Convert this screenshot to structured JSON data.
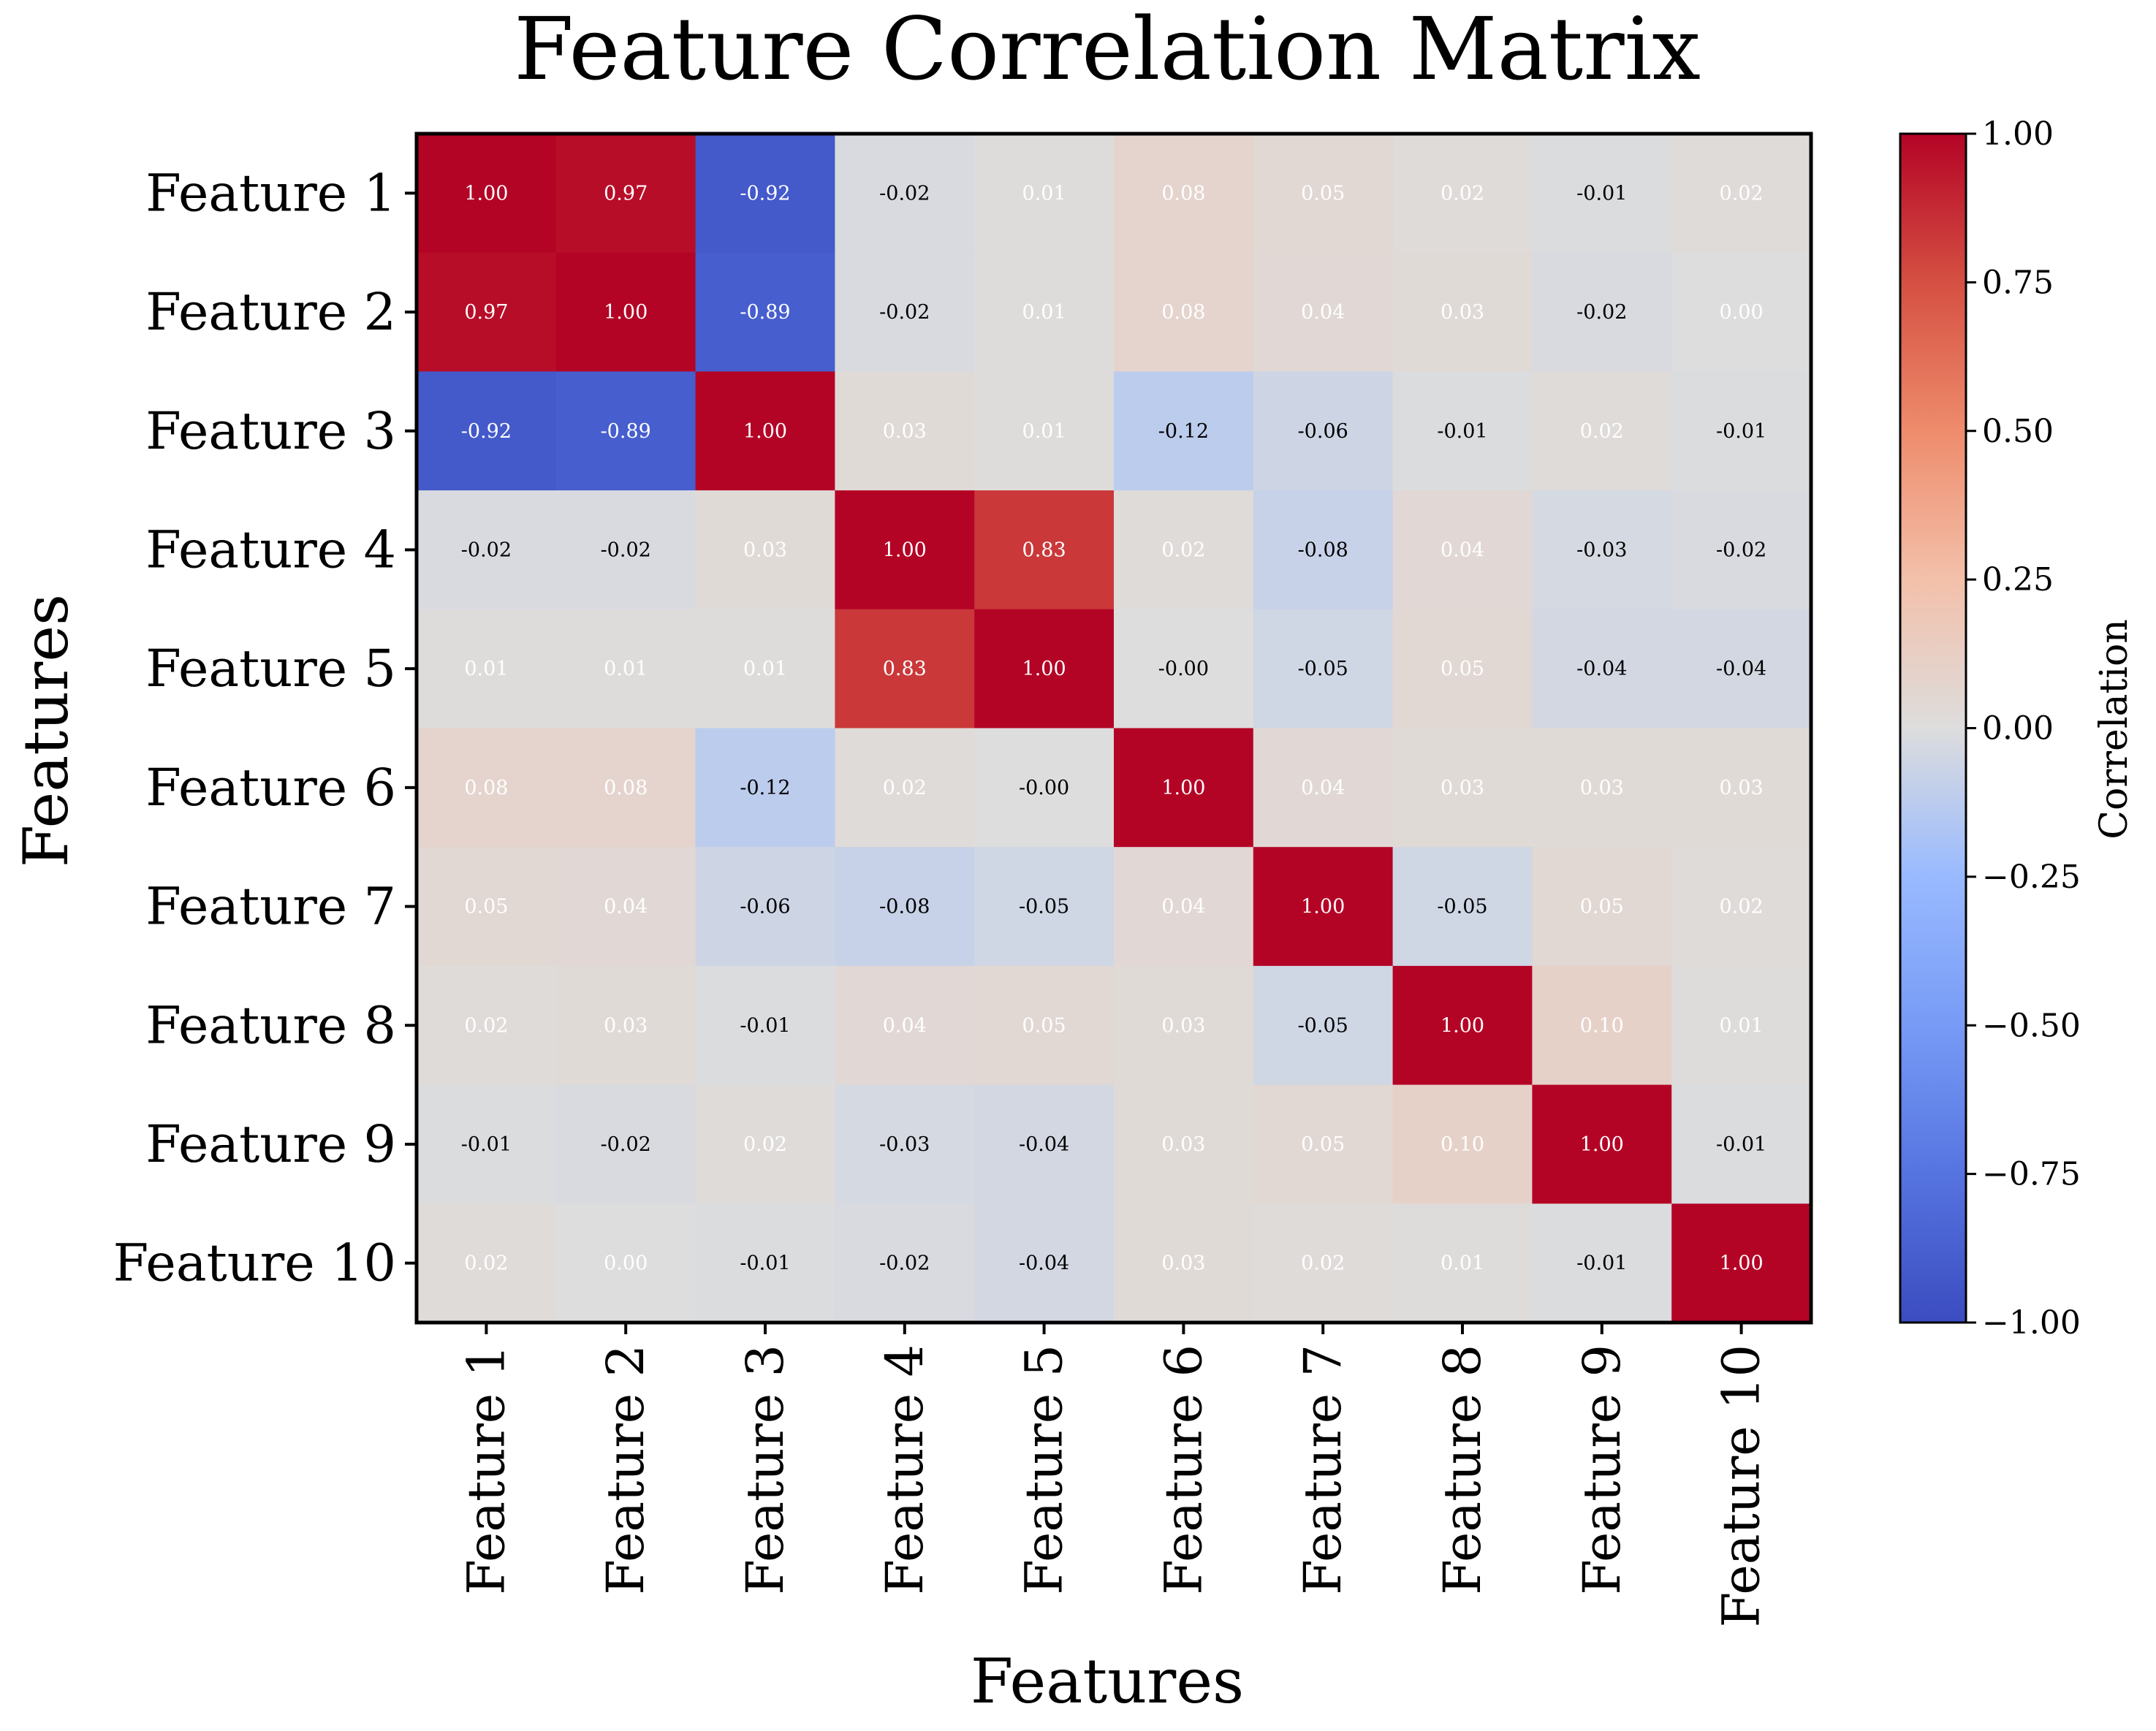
{
  "chart_data": {
    "type": "heatmap",
    "title": "Feature Correlation Matrix",
    "xlabel": "Features",
    "ylabel": "Features",
    "x_categories": [
      "Feature 1",
      "Feature 2",
      "Feature 3",
      "Feature 4",
      "Feature 5",
      "Feature 6",
      "Feature 7",
      "Feature 8",
      "Feature 9",
      "Feature 10"
    ],
    "y_categories": [
      "Feature 1",
      "Feature 2",
      "Feature 3",
      "Feature 4",
      "Feature 5",
      "Feature 6",
      "Feature 7",
      "Feature 8",
      "Feature 9",
      "Feature 10"
    ],
    "values": [
      [
        1.0,
        0.97,
        -0.92,
        -0.02,
        0.01,
        0.08,
        0.05,
        0.02,
        -0.01,
        0.02
      ],
      [
        0.97,
        1.0,
        -0.89,
        -0.02,
        0.01,
        0.08,
        0.04,
        0.03,
        -0.02,
        0.0
      ],
      [
        -0.92,
        -0.89,
        1.0,
        0.03,
        0.01,
        -0.12,
        -0.06,
        -0.01,
        0.02,
        -0.01
      ],
      [
        -0.02,
        -0.02,
        0.03,
        1.0,
        0.83,
        0.02,
        -0.08,
        0.04,
        -0.03,
        -0.02
      ],
      [
        0.01,
        0.01,
        0.01,
        0.83,
        1.0,
        -0.0,
        -0.05,
        0.05,
        -0.04,
        -0.04
      ],
      [
        0.08,
        0.08,
        -0.12,
        0.02,
        -0.0,
        1.0,
        0.04,
        0.03,
        0.03,
        0.03
      ],
      [
        0.05,
        0.04,
        -0.06,
        -0.08,
        -0.05,
        0.04,
        1.0,
        -0.05,
        0.05,
        0.02
      ],
      [
        0.02,
        0.03,
        -0.01,
        0.04,
        0.05,
        0.03,
        -0.05,
        1.0,
        0.1,
        0.01
      ],
      [
        -0.01,
        -0.02,
        0.02,
        -0.03,
        -0.04,
        0.03,
        0.05,
        0.1,
        1.0,
        -0.01
      ],
      [
        0.02,
        0.0,
        -0.01,
        -0.02,
        -0.04,
        0.03,
        0.02,
        0.01,
        -0.01,
        1.0
      ]
    ],
    "value_labels": [
      [
        "1.00",
        "0.97",
        "-0.92",
        "-0.02",
        "0.01",
        "0.08",
        "0.05",
        "0.02",
        "-0.01",
        "0.02"
      ],
      [
        "0.97",
        "1.00",
        "-0.89",
        "-0.02",
        "0.01",
        "0.08",
        "0.04",
        "0.03",
        "-0.02",
        "0.00"
      ],
      [
        "-0.92",
        "-0.89",
        "1.00",
        "0.03",
        "0.01",
        "-0.12",
        "-0.06",
        "-0.01",
        "0.02",
        "-0.01"
      ],
      [
        "-0.02",
        "-0.02",
        "0.03",
        "1.00",
        "0.83",
        "0.02",
        "-0.08",
        "0.04",
        "-0.03",
        "-0.02"
      ],
      [
        "0.01",
        "0.01",
        "0.01",
        "0.83",
        "1.00",
        "-0.00",
        "-0.05",
        "0.05",
        "-0.04",
        "-0.04"
      ],
      [
        "0.08",
        "0.08",
        "-0.12",
        "0.02",
        "-0.00",
        "1.00",
        "0.04",
        "0.03",
        "0.03",
        "0.03"
      ],
      [
        "0.05",
        "0.04",
        "-0.06",
        "-0.08",
        "-0.05",
        "0.04",
        "1.00",
        "-0.05",
        "0.05",
        "0.02"
      ],
      [
        "0.02",
        "0.03",
        "-0.01",
        "0.04",
        "0.05",
        "0.03",
        "-0.05",
        "1.00",
        "0.10",
        "0.01"
      ],
      [
        "-0.01",
        "-0.02",
        "0.02",
        "-0.03",
        "-0.04",
        "0.03",
        "0.05",
        "0.10",
        "1.00",
        "-0.01"
      ],
      [
        "0.02",
        "0.00",
        "-0.01",
        "-0.02",
        "-0.04",
        "0.03",
        "0.02",
        "0.01",
        "-0.01",
        "1.00"
      ]
    ],
    "colorbar": {
      "label": "Correlation",
      "range": [
        -1.0,
        1.0
      ],
      "ticks": [
        -1.0,
        -0.75,
        -0.5,
        -0.25,
        0.0,
        0.25,
        0.5,
        0.75,
        1.0
      ],
      "tick_labels": [
        "−1.00",
        "−0.75",
        "−0.50",
        "−0.25",
        "0.00",
        "0.25",
        "0.50",
        "0.75",
        "1.00"
      ],
      "colormap": "coolwarm"
    },
    "grid": false,
    "legend": "colorbar-right"
  }
}
